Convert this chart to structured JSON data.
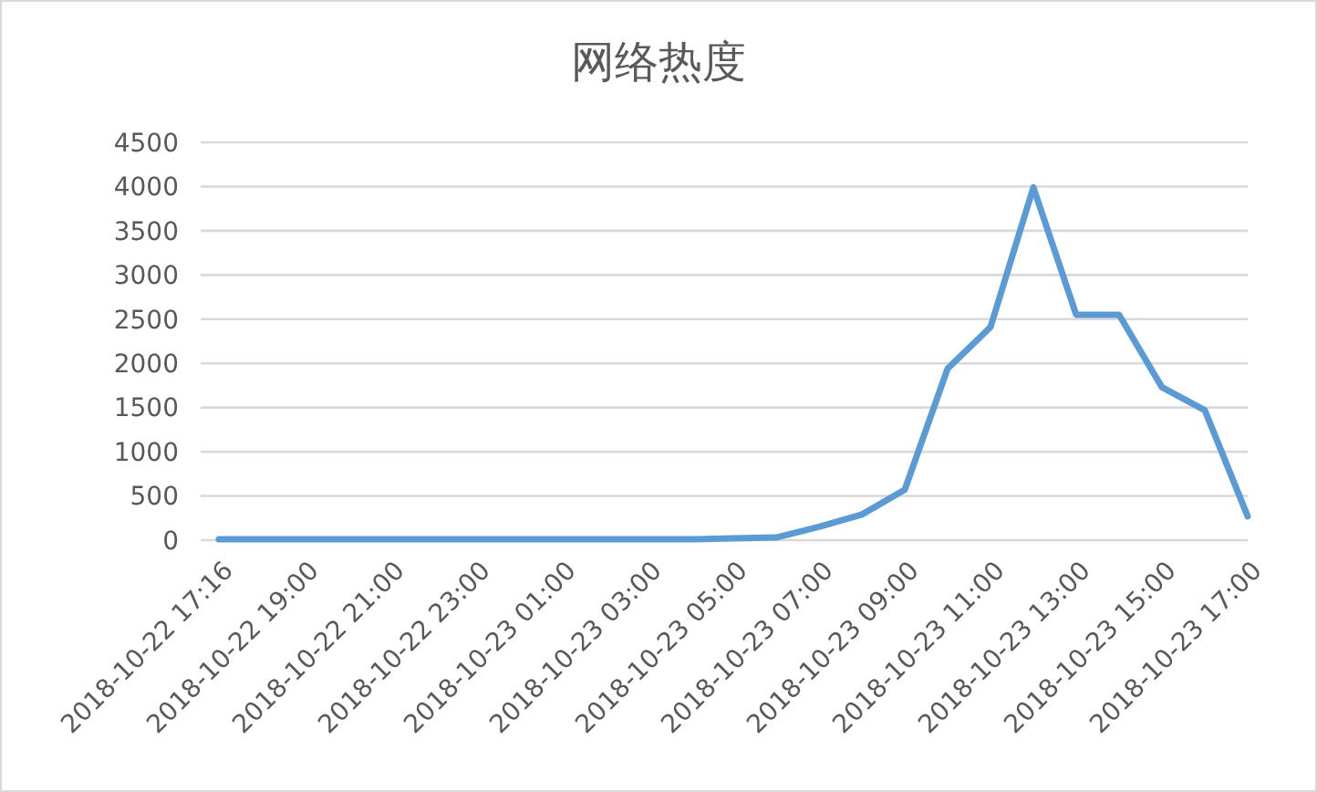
{
  "chart_data": {
    "type": "line",
    "title": "网络热度",
    "categories": [
      "2018-10-22 17:16",
      null,
      "2018-10-22 19:00",
      null,
      "2018-10-22 21:00",
      null,
      "2018-10-22 23:00",
      null,
      "2018-10-23 01:00",
      null,
      "2018-10-23 03:00",
      null,
      "2018-10-23 05:00",
      null,
      "2018-10-23 07:00",
      null,
      "2018-10-23 09:00",
      null,
      "2018-10-23 11:00",
      null,
      "2018-10-23 13:00",
      null,
      "2018-10-23 15:00",
      null,
      "2018-10-23 17:00"
    ],
    "series": [
      {
        "color": "#5b9bd5",
        "values": [
          10,
          10,
          10,
          10,
          10,
          10,
          10,
          10,
          10,
          10,
          10,
          10,
          20,
          30,
          150,
          290,
          570,
          1940,
          2410,
          3990,
          2550,
          2550,
          1730,
          1470,
          270
        ]
      }
    ],
    "ylim": [
      0,
      4500
    ],
    "yticks": [
      0,
      500,
      1000,
      1500,
      2000,
      2500,
      3000,
      3500,
      4000,
      4500
    ],
    "grid": "y",
    "marker": "none",
    "line_style": "solid"
  }
}
